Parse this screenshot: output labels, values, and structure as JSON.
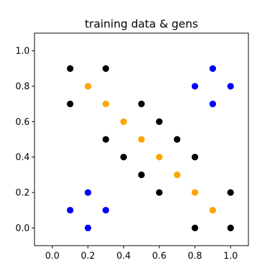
{
  "chart_data": {
    "type": "scatter",
    "title": "training data & gens",
    "xlabel": "",
    "ylabel": "",
    "xlim": [
      -0.1,
      1.1
    ],
    "ylim": [
      -0.1,
      1.1
    ],
    "grid": false,
    "x_ticks": [
      0.0,
      0.2,
      0.4,
      0.6,
      0.8,
      1.0
    ],
    "x_tick_labels": [
      "0.0",
      "0.2",
      "0.4",
      "0.6",
      "0.8",
      "1.0"
    ],
    "y_ticks": [
      0.0,
      0.2,
      0.4,
      0.6,
      0.8,
      1.0
    ],
    "y_tick_labels": [
      "0.0",
      "0.2",
      "0.4",
      "0.6",
      "0.8",
      "1.0"
    ],
    "series": [
      {
        "color": "#000000",
        "points": [
          [
            0.1,
            0.9
          ],
          [
            0.3,
            0.9
          ],
          [
            0.1,
            0.7
          ],
          [
            0.5,
            0.7
          ],
          [
            0.6,
            0.6
          ],
          [
            0.3,
            0.5
          ],
          [
            0.7,
            0.5
          ],
          [
            0.4,
            0.4
          ],
          [
            0.8,
            0.4
          ],
          [
            0.5,
            0.3
          ],
          [
            0.6,
            0.2
          ],
          [
            1.0,
            0.2
          ],
          [
            0.8,
            0.0
          ],
          [
            1.0,
            0.0
          ]
        ]
      },
      {
        "color": "#ffa500",
        "points": [
          [
            0.2,
            0.8
          ],
          [
            0.3,
            0.7
          ],
          [
            0.4,
            0.6
          ],
          [
            0.5,
            0.5
          ],
          [
            0.6,
            0.4
          ],
          [
            0.7,
            0.3
          ],
          [
            0.8,
            0.2
          ],
          [
            0.9,
            0.1
          ]
        ]
      },
      {
        "color": "#0000ff",
        "points": [
          [
            0.9,
            0.9
          ],
          [
            0.8,
            0.8
          ],
          [
            1.0,
            0.8
          ],
          [
            0.9,
            0.7
          ],
          [
            0.2,
            0.2
          ],
          [
            0.1,
            0.1
          ],
          [
            0.3,
            0.1
          ],
          [
            0.2,
            0.0
          ]
        ]
      }
    ]
  }
}
